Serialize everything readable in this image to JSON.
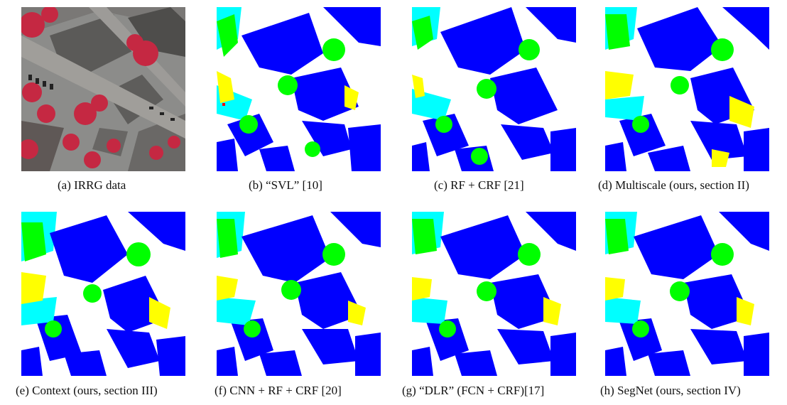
{
  "figure": {
    "panels": [
      {
        "id": "a",
        "caption": "(a) IRRG data"
      },
      {
        "id": "b",
        "caption": "(b) “SVL” [10]"
      },
      {
        "id": "c",
        "caption": "(c) RF + CRF [21]"
      },
      {
        "id": "d",
        "caption": "(d) Multiscale (ours, section II)"
      },
      {
        "id": "e",
        "caption": "(e) Context (ours, section III)"
      },
      {
        "id": "f",
        "caption": "(f) CNN + RF + CRF [20]"
      },
      {
        "id": "g",
        "caption": "(g) “DLR” (FCN + CRF)[17]"
      },
      {
        "id": "h",
        "caption": "(h) SegNet (ours, section IV)"
      }
    ]
  },
  "colors": {
    "impervious": "#ffffff",
    "building": "#0000ff",
    "low_vegetation": "#00ffff",
    "tree": "#00ff00",
    "car": "#ffff00",
    "clutter": "#ff0000",
    "irrg_background": "#8a8a88",
    "irrg_roof": "#5a5a58",
    "irrg_tree": "#c8243e"
  }
}
